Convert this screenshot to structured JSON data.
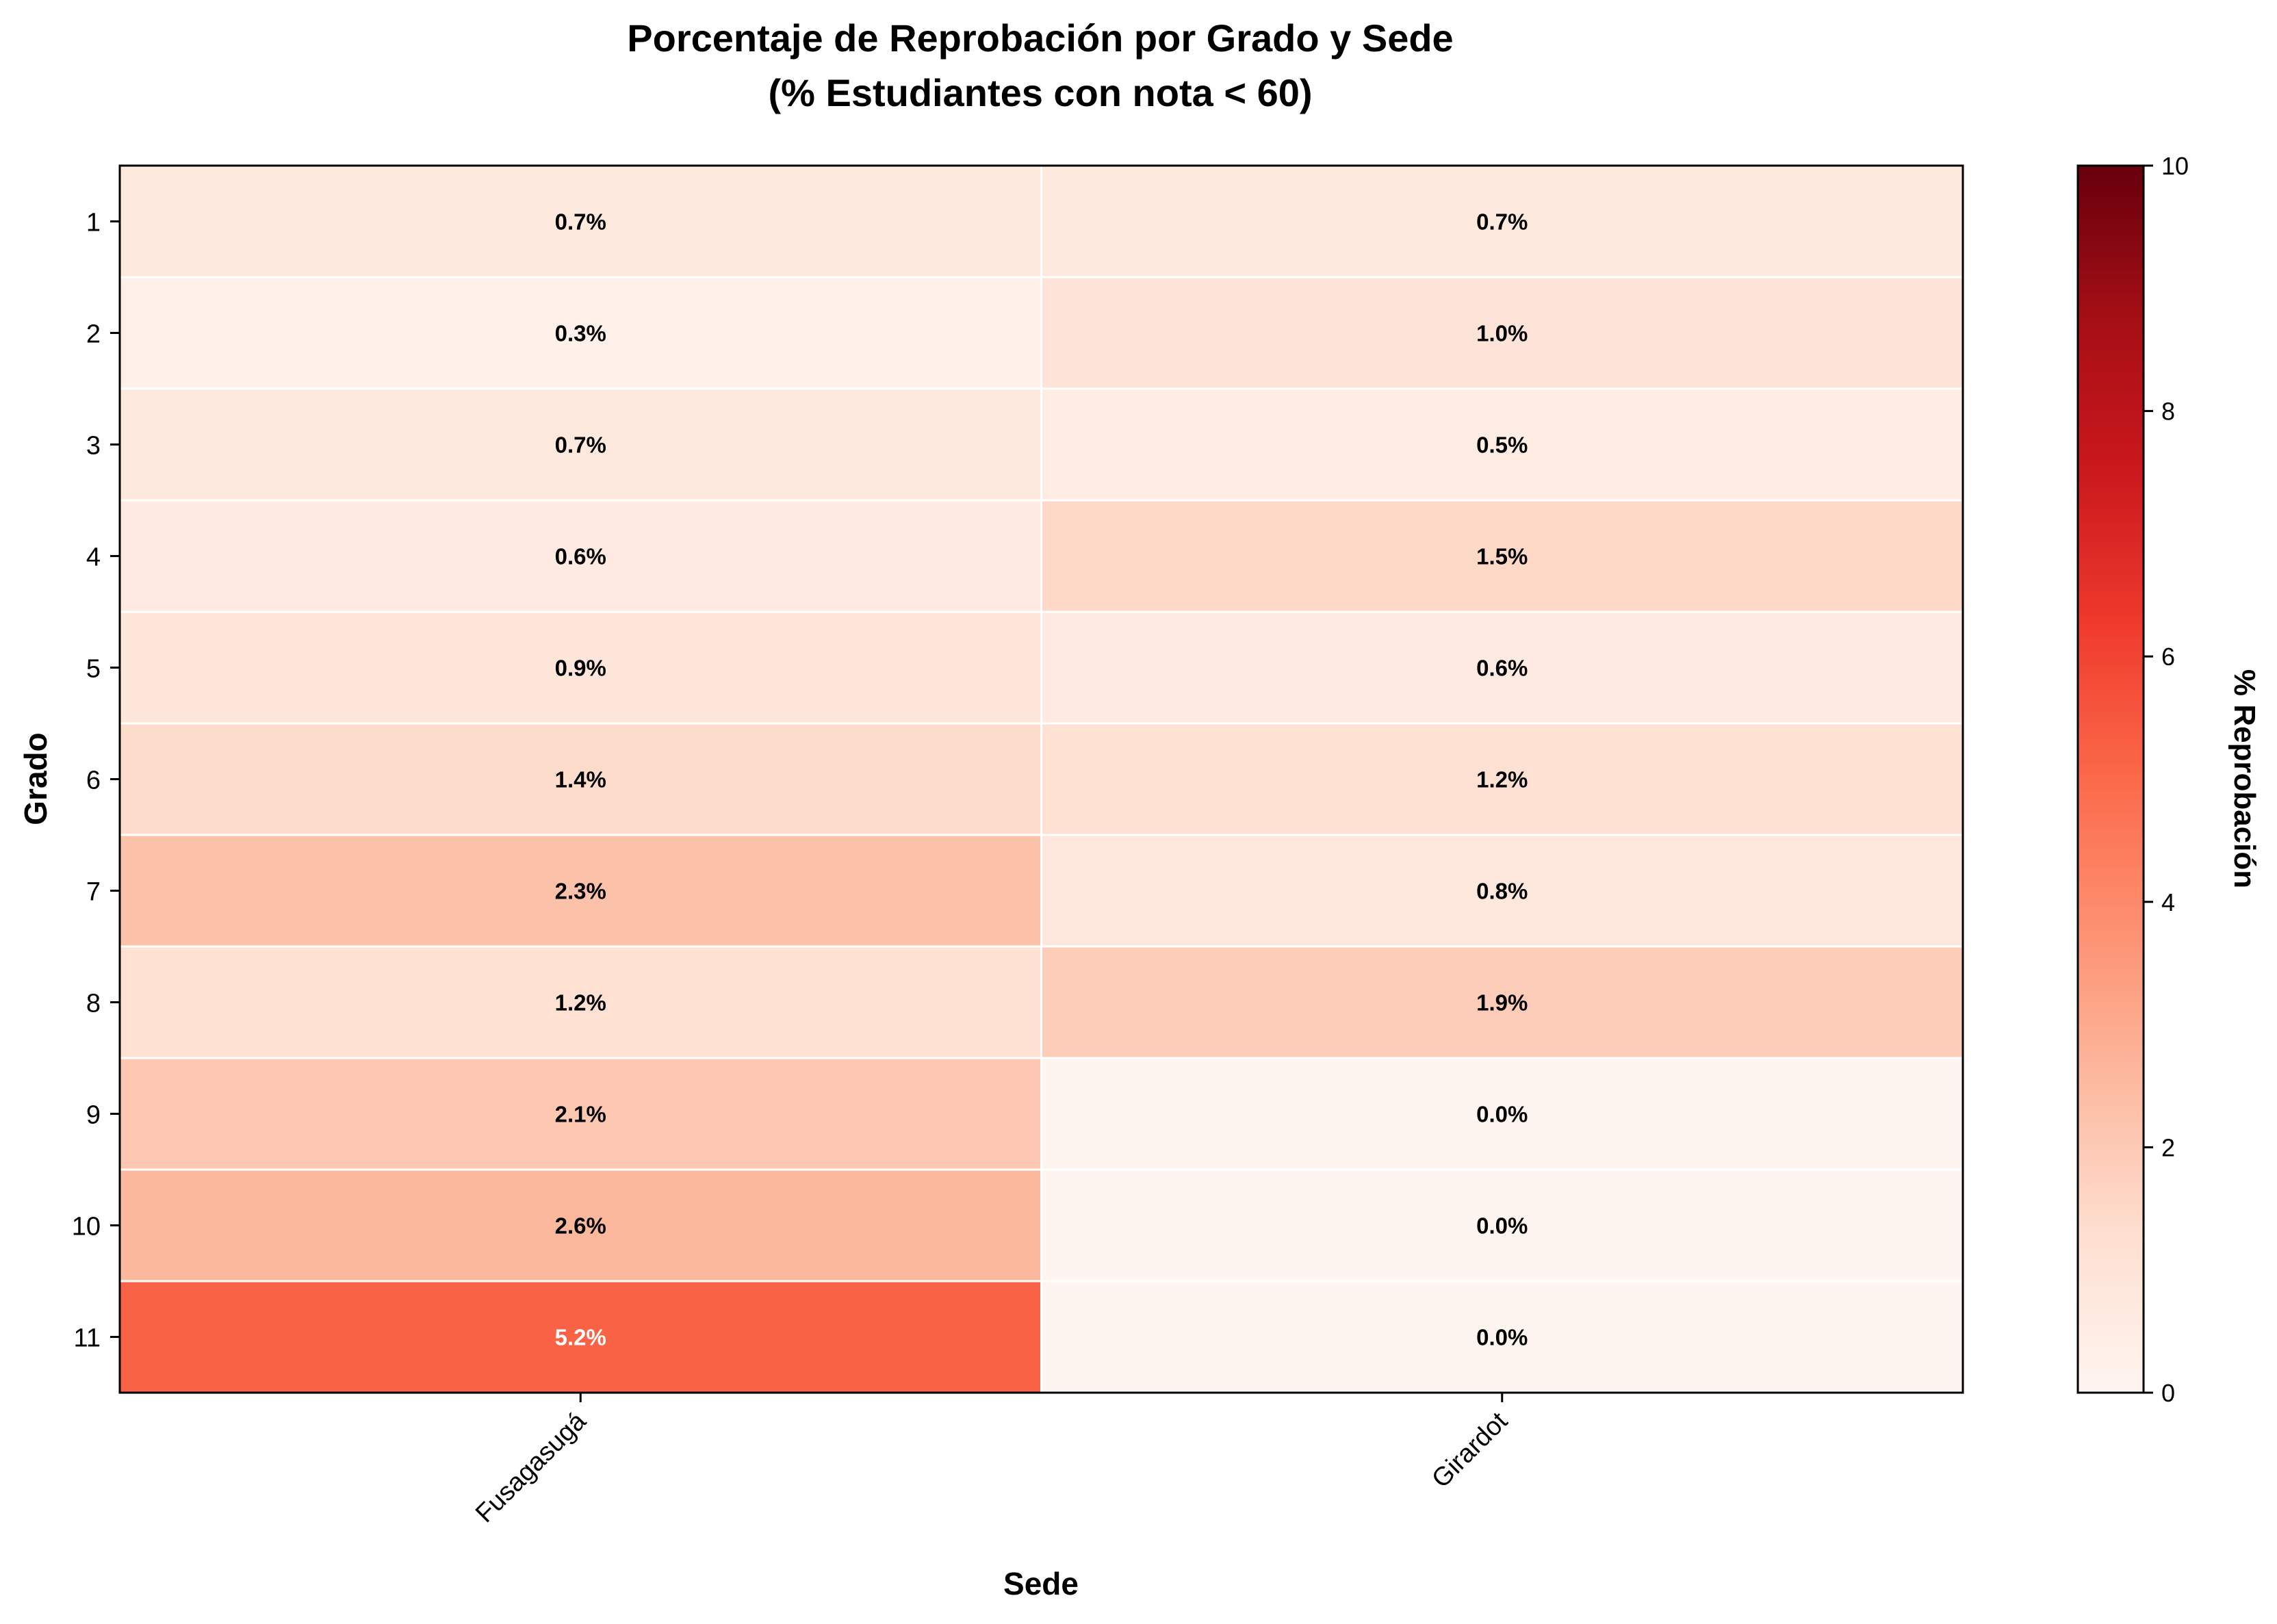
{
  "chart_data": {
    "type": "heatmap",
    "title": "Porcentaje de Reprobación por Grado y Sede",
    "subtitle": "(% Estudiantes con nota < 60)",
    "xlabel": "Sede",
    "ylabel": "Grado",
    "x_categories": [
      "Fusagasugá",
      "Girardot"
    ],
    "y_categories": [
      "1",
      "2",
      "3",
      "4",
      "5",
      "6",
      "7",
      "8",
      "9",
      "10",
      "11"
    ],
    "values": [
      [
        0.7,
        0.7
      ],
      [
        0.3,
        1.0
      ],
      [
        0.7,
        0.5
      ],
      [
        0.6,
        1.5
      ],
      [
        0.9,
        0.6
      ],
      [
        1.4,
        1.2
      ],
      [
        2.3,
        0.8
      ],
      [
        1.2,
        1.9
      ],
      [
        2.1,
        0.0
      ],
      [
        2.6,
        0.0
      ],
      [
        5.2,
        0.0
      ]
    ],
    "value_labels": [
      [
        "0.7%",
        "0.7%"
      ],
      [
        "0.3%",
        "1.0%"
      ],
      [
        "0.7%",
        "0.5%"
      ],
      [
        "0.6%",
        "1.5%"
      ],
      [
        "0.9%",
        "0.6%"
      ],
      [
        "1.4%",
        "1.2%"
      ],
      [
        "2.3%",
        "0.8%"
      ],
      [
        "1.2%",
        "1.9%"
      ],
      [
        "2.1%",
        "0.0%"
      ],
      [
        "2.6%",
        "0.0%"
      ],
      [
        "5.2%",
        "0.0%"
      ]
    ],
    "colorbar": {
      "label": "% Reprobación",
      "range": [
        0,
        10
      ],
      "ticks": [
        "0",
        "2",
        "4",
        "6",
        "8",
        "10"
      ],
      "colormap": "Reds",
      "colors": [
        "#fff5f0",
        "#fee0d2",
        "#fcbba1",
        "#fc9272",
        "#fb6a4a",
        "#ef3b2c",
        "#cb181d",
        "#a50f15",
        "#67000d"
      ]
    },
    "grid": false,
    "legend": "colorbar-right"
  }
}
